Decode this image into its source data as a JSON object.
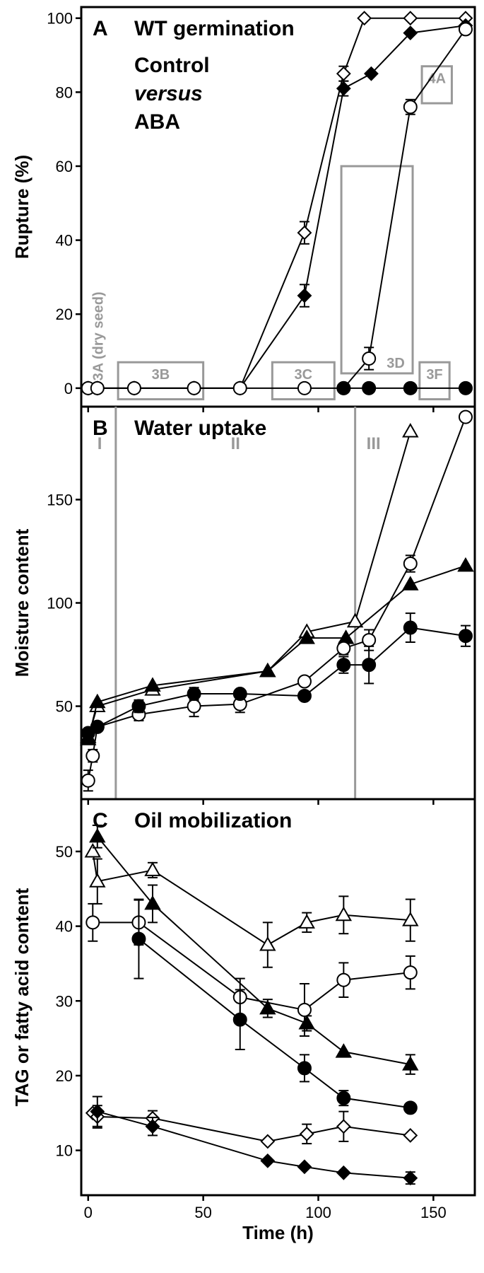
{
  "colors": {
    "axis": "#000000",
    "annotation": "#999999",
    "filled": "#000000",
    "open": "#ffffff"
  },
  "chart_data": [
    {
      "type": "line",
      "panel": "A",
      "title": "WT germination",
      "subtitle_lines": [
        "Control",
        "versus",
        "ABA"
      ],
      "xlabel": "",
      "ylabel": "Rupture (%)",
      "xlim": [
        -3,
        168
      ],
      "ylim": [
        -5,
        103
      ],
      "xticks": [
        0,
        50,
        100,
        150
      ],
      "yticks": [
        0,
        20,
        40,
        60,
        80,
        100
      ],
      "ytick_labels": [
        "0",
        "20",
        "40",
        "60",
        "80",
        "100"
      ],
      "series": [
        {
          "marker": "diamond",
          "fill": "open",
          "points": [
            [
              0,
              0
            ],
            [
              4,
              0
            ],
            [
              20,
              0
            ],
            [
              46,
              0
            ],
            [
              66,
              0
            ],
            [
              94,
              42
            ],
            [
              111,
              85
            ],
            [
              120,
              100
            ],
            [
              140,
              100
            ],
            [
              164,
              100
            ]
          ],
          "err": [
            0,
            0,
            0,
            0,
            0,
            3,
            2,
            0,
            0,
            0
          ]
        },
        {
          "marker": "diamond",
          "fill": "filled",
          "points": [
            [
              0,
              0
            ],
            [
              4,
              0
            ],
            [
              20,
              0
            ],
            [
              46,
              0
            ],
            [
              66,
              0
            ],
            [
              94,
              25
            ],
            [
              111,
              81
            ],
            [
              123,
              85
            ],
            [
              140,
              96
            ],
            [
              164,
              98
            ]
          ],
          "err": [
            0,
            0,
            0,
            0,
            0,
            3,
            2,
            0,
            0,
            0
          ]
        },
        {
          "marker": "circle",
          "fill": "open",
          "points": [
            [
              0,
              0
            ],
            [
              4,
              0
            ],
            [
              20,
              0
            ],
            [
              46,
              0
            ],
            [
              66,
              0
            ],
            [
              94,
              0
            ],
            [
              111,
              0
            ],
            [
              122,
              8
            ],
            [
              140,
              76
            ],
            [
              164,
              97
            ]
          ],
          "err": [
            0,
            0,
            0,
            0,
            0,
            0,
            0,
            3,
            2,
            0
          ]
        },
        {
          "marker": "circle",
          "fill": "filled",
          "points": [
            [
              111,
              0
            ],
            [
              122,
              0
            ],
            [
              140,
              0
            ],
            [
              164,
              0
            ]
          ],
          "err": [
            0,
            0,
            0,
            0
          ]
        }
      ],
      "annotations": [
        {
          "label": "3A (dry seed)",
          "type": "rotated-text",
          "x": 2,
          "y": 2
        },
        {
          "label": "3B",
          "type": "box",
          "x0": 13,
          "x1": 50,
          "y0": -3,
          "y1": 7
        },
        {
          "label": "3C",
          "type": "box",
          "x0": 80,
          "x1": 107,
          "y0": -3,
          "y1": 7
        },
        {
          "label": "3D",
          "type": "box",
          "x0": 110,
          "x1": 141,
          "y0": 4,
          "y1": 60
        },
        {
          "label": "4A",
          "type": "box",
          "x0": 145,
          "x1": 158,
          "y0": 77,
          "y1": 87
        },
        {
          "label": "3F",
          "type": "box",
          "x0": 144,
          "x1": 157,
          "y0": -3,
          "y1": 7
        }
      ]
    },
    {
      "type": "line",
      "panel": "B",
      "title": "Water uptake",
      "xlabel": "",
      "ylabel": "Moisture content",
      "xlim": [
        -3,
        168
      ],
      "ylim": [
        5,
        195
      ],
      "xticks": [
        0,
        50,
        100,
        150
      ],
      "yticks": [
        50,
        100,
        150
      ],
      "ytick_labels": [
        "50",
        "100",
        "150"
      ],
      "phase_lines": [
        12,
        116
      ],
      "phase_labels": [
        {
          "label": "I",
          "x": 5
        },
        {
          "label": "II",
          "x": 64
        },
        {
          "label": "III",
          "x": 124
        }
      ],
      "series": [
        {
          "marker": "triangle",
          "fill": "open",
          "points": [
            [
              0,
              35
            ],
            [
              4,
              50
            ],
            [
              28,
              58
            ],
            [
              78,
              67
            ],
            [
              95,
              86
            ],
            [
              116,
              91
            ],
            [
              140,
              183
            ]
          ],
          "err": [
            0,
            0,
            0,
            0,
            0,
            0,
            0
          ]
        },
        {
          "marker": "triangle",
          "fill": "filled",
          "points": [
            [
              0,
              34
            ],
            [
              4,
              52
            ],
            [
              28,
              60
            ],
            [
              78,
              67
            ],
            [
              95,
              83
            ],
            [
              112,
              83
            ],
            [
              140,
              109
            ],
            [
              164,
              118
            ]
          ],
          "err": [
            0,
            0,
            0,
            0,
            0,
            0,
            0,
            0
          ]
        },
        {
          "marker": "circle",
          "fill": "open",
          "points": [
            [
              0,
              14
            ],
            [
              2,
              26
            ],
            [
              4,
              40
            ],
            [
              22,
              46
            ],
            [
              46,
              50
            ],
            [
              66,
              51
            ],
            [
              94,
              62
            ],
            [
              111,
              78
            ],
            [
              122,
              82
            ],
            [
              140,
              119
            ],
            [
              164,
              190
            ]
          ],
          "err": [
            5,
            3,
            0,
            3,
            5,
            4,
            0,
            3,
            5,
            4,
            0
          ]
        },
        {
          "marker": "circle",
          "fill": "filled",
          "points": [
            [
              0,
              37
            ],
            [
              4,
              40
            ],
            [
              22,
              50
            ],
            [
              46,
              56
            ],
            [
              66,
              56
            ],
            [
              94,
              55
            ],
            [
              111,
              70
            ],
            [
              122,
              70
            ],
            [
              140,
              88
            ],
            [
              164,
              84
            ]
          ],
          "err": [
            0,
            0,
            3,
            3,
            0,
            0,
            4,
            9,
            7,
            5
          ]
        }
      ]
    },
    {
      "type": "line",
      "panel": "C",
      "title": "Oil mobilization",
      "xlabel": "Time (h)",
      "ylabel": "TAG or fatty acid content",
      "xlim": [
        -3,
        168
      ],
      "ylim": [
        4,
        57
      ],
      "xticks": [
        0,
        50,
        100,
        150
      ],
      "xtick_labels": [
        "0",
        "50",
        "100",
        "150"
      ],
      "yticks": [
        10,
        20,
        30,
        40,
        50
      ],
      "ytick_labels": [
        "10",
        "20",
        "30",
        "40",
        "50"
      ],
      "series": [
        {
          "marker": "triangle",
          "fill": "open",
          "points": [
            [
              2,
              50
            ],
            [
              4,
              46
            ],
            [
              28,
              47.5
            ],
            [
              78,
              37.5
            ],
            [
              95,
              40.5
            ],
            [
              111,
              41.5
            ],
            [
              140,
              40.8
            ]
          ],
          "err": [
            0,
            3,
            1,
            3,
            1.3,
            2.5,
            2.8
          ]
        },
        {
          "marker": "triangle",
          "fill": "filled",
          "points": [
            [
              4,
              52
            ],
            [
              28,
              43
            ],
            [
              78,
              29
            ],
            [
              95,
              27
            ],
            [
              111,
              23.2
            ],
            [
              140,
              21.5
            ]
          ],
          "err": [
            1.5,
            2.5,
            1.2,
            1,
            0,
            1.3
          ]
        },
        {
          "marker": "circle",
          "fill": "open",
          "points": [
            [
              2,
              40.5
            ],
            [
              22,
              40.5
            ],
            [
              66,
              30.5
            ],
            [
              94,
              28.8
            ],
            [
              111,
              32.8
            ],
            [
              140,
              33.8
            ]
          ],
          "err": [
            2.5,
            3,
            2.5,
            3.5,
            2.3,
            2.2
          ]
        },
        {
          "marker": "circle",
          "fill": "filled",
          "points": [
            [
              22,
              38.3
            ],
            [
              66,
              27.5
            ],
            [
              94,
              21
            ],
            [
              111,
              17
            ],
            [
              140,
              15.7
            ]
          ],
          "err": [
            5.3,
            4,
            1.8,
            1,
            0
          ]
        },
        {
          "marker": "diamond",
          "fill": "open",
          "points": [
            [
              2,
              15
            ],
            [
              4,
              14.5
            ],
            [
              28,
              14.3
            ],
            [
              78,
              11.2
            ],
            [
              95,
              12.2
            ],
            [
              111,
              13.2
            ],
            [
              140,
              12
            ]
          ],
          "err": [
            0,
            1.5,
            1,
            0,
            1.3,
            2,
            0
          ]
        },
        {
          "marker": "diamond",
          "fill": "filled",
          "points": [
            [
              4,
              15.2
            ],
            [
              28,
              13.2
            ],
            [
              78,
              8.6
            ],
            [
              94,
              7.8
            ],
            [
              111,
              7
            ],
            [
              140,
              6.3
            ]
          ],
          "err": [
            2,
            1.2,
            0,
            0,
            0,
            0.8
          ]
        }
      ]
    }
  ]
}
